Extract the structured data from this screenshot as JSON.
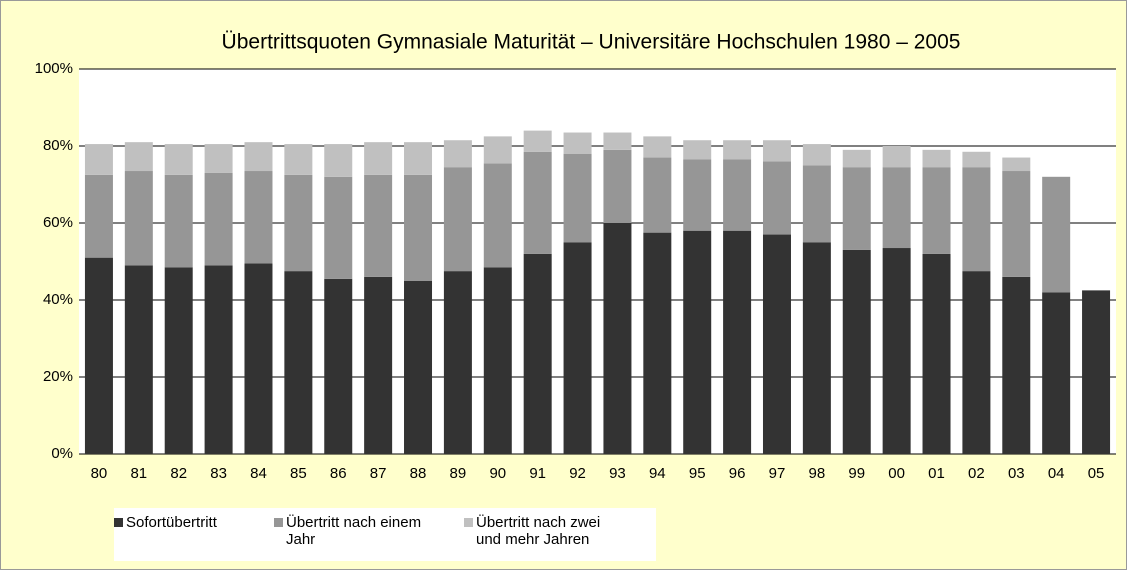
{
  "chart_data": {
    "type": "stacked_bar",
    "title": "Übertrittsquoten Gymnasiale Maturität – Universitäre Hochschulen  1980 – 2005",
    "categories": [
      "80",
      "81",
      "82",
      "83",
      "84",
      "85",
      "86",
      "87",
      "88",
      "89",
      "90",
      "91",
      "92",
      "93",
      "94",
      "95",
      "96",
      "97",
      "98",
      "99",
      "00",
      "01",
      "02",
      "03",
      "04",
      "05"
    ],
    "series": [
      {
        "name": "Sofortübertritt",
        "color": "#333333",
        "values": [
          51,
          49,
          48.5,
          49,
          49.5,
          47.5,
          45.5,
          46,
          45,
          47.5,
          48.5,
          52,
          55,
          60,
          57.5,
          58,
          58,
          57,
          55,
          53,
          53.5,
          52,
          47.5,
          46,
          42,
          42.5
        ]
      },
      {
        "name": "Übertritt nach einem Jahr",
        "color": "#969696",
        "values": [
          21.5,
          24.5,
          24,
          24,
          24,
          25,
          26.5,
          26.5,
          27.5,
          27,
          27,
          26.5,
          23,
          19,
          19.5,
          18.5,
          18.5,
          19,
          20,
          21.5,
          21,
          22.5,
          27,
          27.5,
          30,
          null
        ]
      },
      {
        "name": "Übertritt nach zwei und mehr Jahren",
        "color": "#c0c0c0",
        "values": [
          8,
          7.5,
          8,
          7.5,
          7.5,
          8,
          8.5,
          8.5,
          8.5,
          7,
          7,
          5.5,
          5.5,
          4.5,
          5.5,
          5,
          5,
          5.5,
          5.5,
          4.5,
          5.5,
          4.5,
          4,
          3.5,
          null,
          null
        ]
      }
    ],
    "ylim": [
      0,
      100
    ],
    "yticks": [
      {
        "value": 0,
        "label": "0%"
      },
      {
        "value": 20,
        "label": "20%"
      },
      {
        "value": 40,
        "label": "40%"
      },
      {
        "value": 60,
        "label": "60%"
      },
      {
        "value": 80,
        "label": "80%"
      },
      {
        "value": 100,
        "label": "100%"
      }
    ],
    "grid": true,
    "legend": "bottom-left"
  }
}
